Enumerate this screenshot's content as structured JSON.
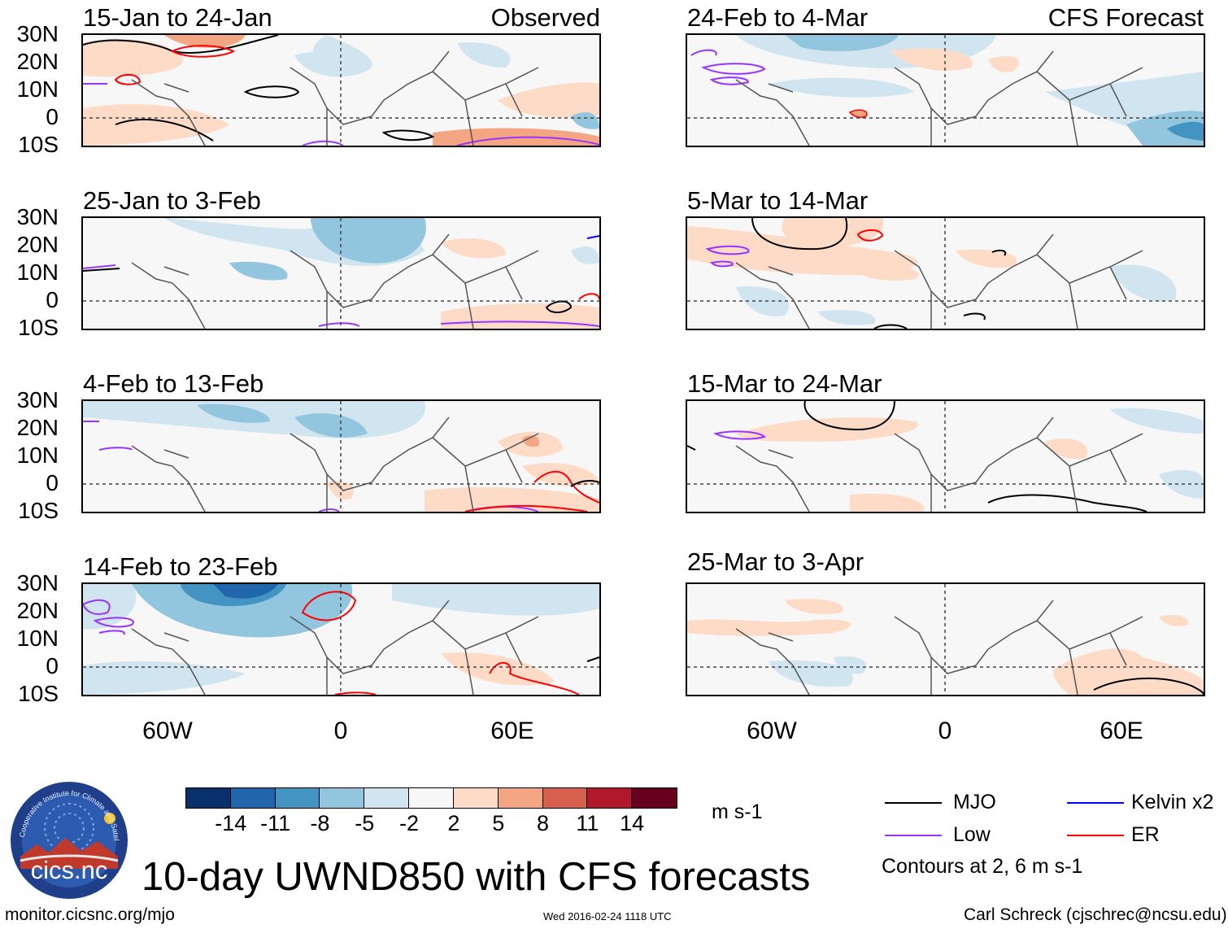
{
  "panels": {
    "p0": {
      "title": "15-Jan to 24-Jan",
      "tag": "Observed"
    },
    "p1": {
      "title": "25-Jan to 3-Feb"
    },
    "p2": {
      "title": "4-Feb to 13-Feb"
    },
    "p3": {
      "title": "14-Feb to 23-Feb"
    },
    "p4": {
      "title": "24-Feb to 4-Mar",
      "tag": "CFS Forecast"
    },
    "p5": {
      "title": "5-Mar to 14-Mar"
    },
    "p6": {
      "title": "15-Mar to 24-Mar"
    },
    "p7": {
      "title": "25-Mar to 3-Apr"
    }
  },
  "lat_labels": [
    "30N",
    "20N",
    "10N",
    "0",
    "10S"
  ],
  "lon_labels": [
    "60W",
    "0",
    "60E"
  ],
  "colorbar": {
    "unit": "m s-1",
    "colors": [
      "#08306b",
      "#2166ac",
      "#4393c3",
      "#92c5de",
      "#d1e5f0",
      "#f7f7f7",
      "#fddbc7",
      "#f4a582",
      "#d6604d",
      "#b2182b",
      "#67001f"
    ],
    "ticks": [
      "-14",
      "-11",
      "-8",
      "-5",
      "-2",
      "2",
      "5",
      "8",
      "11",
      "14"
    ]
  },
  "legend": {
    "items": [
      {
        "label": "MJO",
        "color": "#000000"
      },
      {
        "label": "Kelvin x2",
        "color": "#0000ff"
      },
      {
        "label": "Low",
        "color": "#9933ff"
      },
      {
        "label": "ER",
        "color": "#ff0000"
      }
    ],
    "note": "Contours at 2, 6 m s-1"
  },
  "title": "10-day UWND850 with CFS forecasts",
  "logo": {
    "text": "cics.nc",
    "ring_text": "Cooperative Institute for Climate and Satellites"
  },
  "footer": {
    "left": "monitor.cicsnc.org/mjo",
    "center": "Wed 2016-02-24 1118 UTC",
    "right": "Carl Schreck (cjschrec@ncsu.edu)"
  }
}
